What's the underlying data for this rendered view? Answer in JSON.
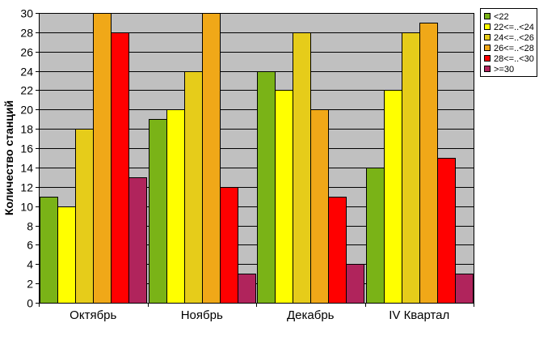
{
  "chart_data": {
    "type": "bar",
    "categories": [
      "Октябрь",
      "Ноябрь",
      "Декабрь",
      "IV Квартал"
    ],
    "series": [
      {
        "name": "<22",
        "color": "#7ab317",
        "values": [
          11,
          19,
          24,
          14
        ]
      },
      {
        "name": "22<=..<24",
        "color": "#ffff00",
        "values": [
          10,
          20,
          22,
          22
        ]
      },
      {
        "name": "24<=..<26",
        "color": "#e6cc1a",
        "values": [
          18,
          24,
          28,
          28
        ]
      },
      {
        "name": "26<=..<28",
        "color": "#f0a818",
        "values": [
          30,
          30,
          20,
          29
        ]
      },
      {
        "name": "28<=..<30",
        "color": "#ff0000",
        "values": [
          28,
          12,
          11,
          15
        ]
      },
      {
        "name": ">=30",
        "color": "#b0245c",
        "values": [
          13,
          3,
          4,
          3
        ]
      }
    ],
    "title": "",
    "xlabel": "",
    "ylabel": "Количество станций",
    "ylim": [
      0,
      30
    ],
    "yticks": [
      0,
      2,
      4,
      6,
      8,
      10,
      12,
      14,
      16,
      18,
      20,
      22,
      24,
      26,
      28,
      30
    ],
    "grid": true,
    "legend": "top-right",
    "plot_background": "#c0c0c0"
  }
}
